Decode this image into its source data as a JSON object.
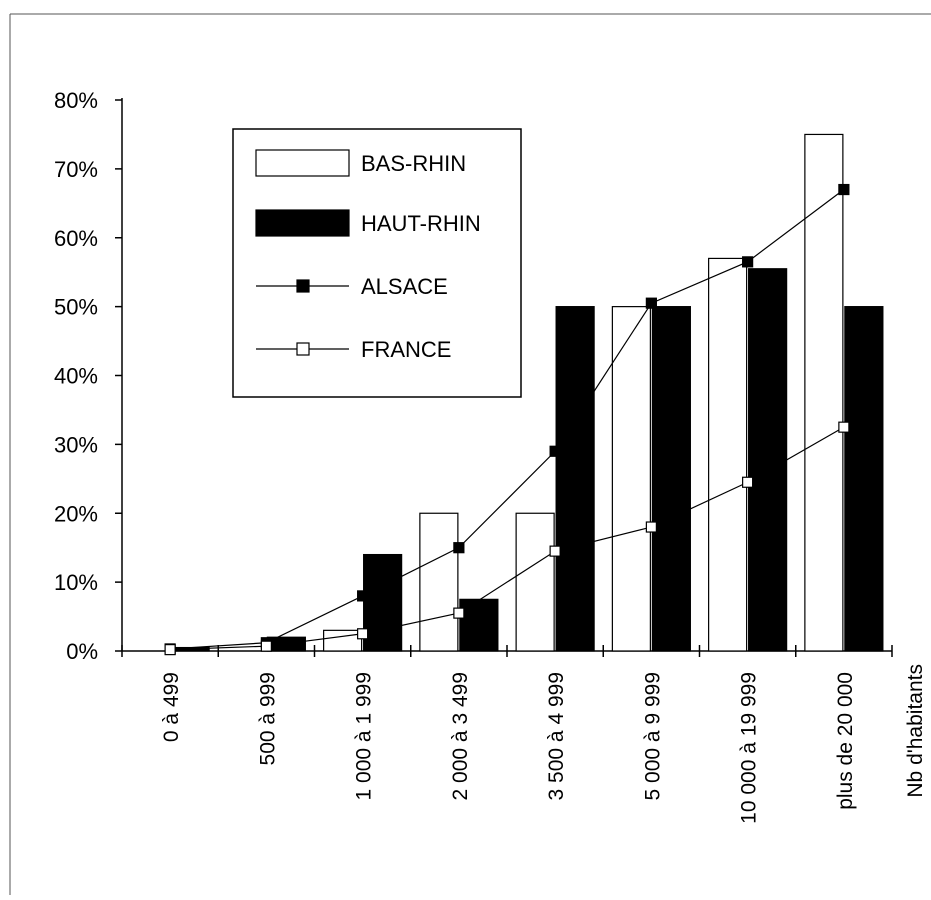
{
  "chart_data": {
    "type": "bar",
    "title": "",
    "xlabel": "Nb d'habitants",
    "ylabel": "",
    "ylim": [
      0,
      0.8
    ],
    "y_ticks": [
      0,
      0.1,
      0.2,
      0.3,
      0.4,
      0.5,
      0.6,
      0.7,
      0.8
    ],
    "y_tick_labels": [
      "0%",
      "10%",
      "20%",
      "30%",
      "40%",
      "50%",
      "60%",
      "70%",
      "80%"
    ],
    "categories": [
      "0 à 499",
      "500 à 999",
      "1 000 à 1 999",
      "2 000 à 3 499",
      "3 500 à 4 999",
      "5 000 à 9 999",
      "10 000 à 19 999",
      "plus de 20 000"
    ],
    "grid": false,
    "legend_position": "upper-left inside",
    "series": [
      {
        "name": "BAS-RHIN",
        "kind": "bar",
        "fill": "#ffffff",
        "stroke": "#000000",
        "values": [
          0.0,
          0.0,
          0.03,
          0.2,
          0.2,
          0.5,
          0.57,
          0.75
        ]
      },
      {
        "name": "HAUT-RHIN",
        "kind": "bar",
        "fill": "#000000",
        "stroke": "#000000",
        "values": [
          0.005,
          0.02,
          0.14,
          0.075,
          0.5,
          0.5,
          0.555,
          0.5
        ]
      },
      {
        "name": "ALSACE",
        "kind": "line",
        "marker": "filled-square",
        "color": "#000000",
        "values": [
          0.003,
          0.012,
          0.08,
          0.15,
          0.29,
          0.505,
          0.565,
          0.67
        ]
      },
      {
        "name": "FRANCE",
        "kind": "line",
        "marker": "open-square",
        "color": "#000000",
        "values": [
          0.002,
          0.007,
          0.025,
          0.055,
          0.145,
          0.18,
          0.245,
          0.325
        ]
      }
    ]
  }
}
